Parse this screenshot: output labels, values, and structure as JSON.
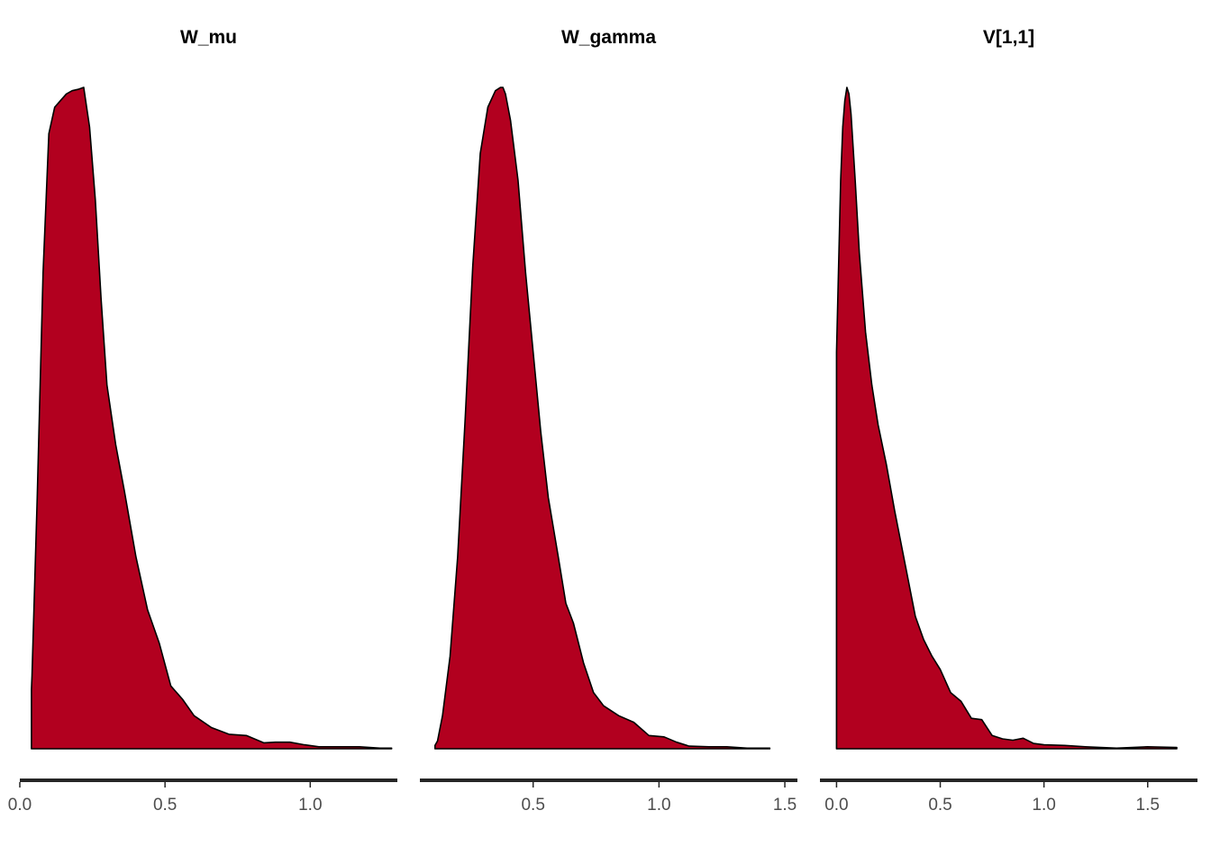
{
  "chart_data": [
    {
      "type": "area",
      "title": "W_mu",
      "fill_color": "#b2001f",
      "line_color": "#000000",
      "xlim": [
        0.0,
        1.3
      ],
      "x_ticks": [
        0.0,
        0.5,
        1.0
      ],
      "x_tick_labels": [
        "0.0",
        "0.5",
        "1.0"
      ],
      "ylim": [
        0,
        1.0
      ],
      "y_axis_shown": false,
      "grid": false,
      "x": [
        0.04,
        0.042,
        0.06,
        0.08,
        0.1,
        0.12,
        0.14,
        0.16,
        0.18,
        0.2,
        0.22,
        0.24,
        0.26,
        0.28,
        0.3,
        0.33,
        0.36,
        0.4,
        0.44,
        0.48,
        0.52,
        0.56,
        0.6,
        0.66,
        0.72,
        0.78,
        0.84,
        0.88,
        0.93,
        0.98,
        1.03,
        1.1,
        1.17,
        1.24,
        1.28
      ],
      "density": [
        0.09,
        0.11,
        0.38,
        0.72,
        0.93,
        0.97,
        0.98,
        0.99,
        0.995,
        0.997,
        1.0,
        0.94,
        0.83,
        0.68,
        0.55,
        0.46,
        0.39,
        0.29,
        0.21,
        0.16,
        0.095,
        0.075,
        0.05,
        0.032,
        0.022,
        0.02,
        0.009,
        0.01,
        0.01,
        0.006,
        0.003,
        0.003,
        0.003,
        0.001,
        0.001
      ]
    },
    {
      "type": "area",
      "title": "W_gamma",
      "fill_color": "#b2001f",
      "line_color": "#000000",
      "xlim": [
        0.05,
        1.55
      ],
      "x_ticks": [
        0.5,
        1.0,
        1.5
      ],
      "x_tick_labels": [
        "0.5",
        "1.0",
        "1.5"
      ],
      "ylim": [
        0,
        1.0
      ],
      "y_axis_shown": false,
      "grid": false,
      "x": [
        0.11,
        0.12,
        0.14,
        0.17,
        0.2,
        0.23,
        0.26,
        0.29,
        0.32,
        0.35,
        0.37,
        0.38,
        0.39,
        0.41,
        0.44,
        0.47,
        0.5,
        0.53,
        0.56,
        0.6,
        0.63,
        0.66,
        0.7,
        0.74,
        0.78,
        0.84,
        0.9,
        0.96,
        1.02,
        1.07,
        1.12,
        1.2,
        1.27,
        1.35,
        1.44
      ],
      "density": [
        0.005,
        0.012,
        0.05,
        0.14,
        0.29,
        0.5,
        0.73,
        0.9,
        0.97,
        0.995,
        1.0,
        1.0,
        0.99,
        0.95,
        0.86,
        0.72,
        0.6,
        0.48,
        0.38,
        0.29,
        0.22,
        0.19,
        0.13,
        0.085,
        0.065,
        0.05,
        0.04,
        0.02,
        0.018,
        0.01,
        0.004,
        0.003,
        0.003,
        0.001,
        0.001
      ]
    },
    {
      "type": "area",
      "title": "V[1,1]",
      "fill_color": "#b2001f",
      "line_color": "#000000",
      "xlim": [
        -0.08,
        1.74
      ],
      "x_ticks": [
        0.0,
        0.5,
        1.0,
        1.5
      ],
      "x_tick_labels": [
        "0.0",
        "0.5",
        "1.0",
        "1.5"
      ],
      "ylim": [
        0,
        1.0
      ],
      "y_axis_shown": false,
      "grid": false,
      "x": [
        0.0,
        0.01,
        0.02,
        0.03,
        0.04,
        0.05,
        0.06,
        0.07,
        0.09,
        0.11,
        0.14,
        0.17,
        0.2,
        0.24,
        0.28,
        0.33,
        0.38,
        0.42,
        0.46,
        0.5,
        0.55,
        0.6,
        0.65,
        0.7,
        0.75,
        0.8,
        0.85,
        0.9,
        0.95,
        1.0,
        1.1,
        1.2,
        1.35,
        1.5,
        1.64
      ],
      "density": [
        0.6,
        0.73,
        0.86,
        0.94,
        0.98,
        1.0,
        0.99,
        0.96,
        0.86,
        0.75,
        0.63,
        0.55,
        0.49,
        0.43,
        0.36,
        0.28,
        0.2,
        0.165,
        0.14,
        0.12,
        0.085,
        0.072,
        0.046,
        0.044,
        0.02,
        0.015,
        0.013,
        0.016,
        0.008,
        0.006,
        0.005,
        0.003,
        0.001,
        0.003,
        0.002
      ]
    }
  ]
}
